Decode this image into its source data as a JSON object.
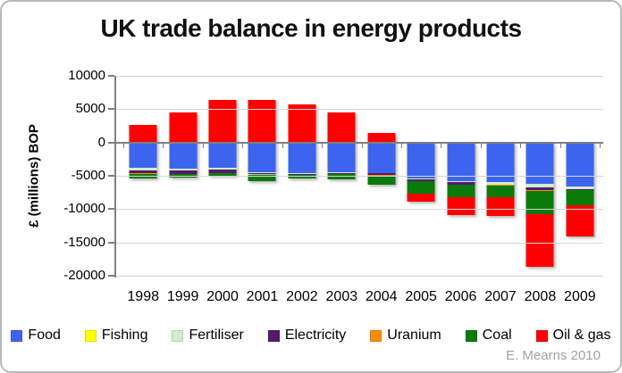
{
  "attribution": "E. Mearns 2010",
  "chart_data": {
    "type": "bar",
    "stacked": true,
    "title": "UK trade balance in energy products",
    "ylabel": "£ (millions) BOP",
    "xlabel": "",
    "categories": [
      "1998",
      "1999",
      "2000",
      "2001",
      "2002",
      "2003",
      "2004",
      "2005",
      "2006",
      "2007",
      "2008",
      "2009"
    ],
    "series": [
      {
        "name": "Food",
        "color": "#3C64EE",
        "values": [
          -3800,
          -3900,
          -3800,
          -4400,
          -4600,
          -4400,
          -4600,
          -5400,
          -5750,
          -5950,
          -6200,
          -6600
        ]
      },
      {
        "name": "Fishing",
        "color": "#FFFF00",
        "values": [
          100,
          100,
          100,
          100,
          100,
          100,
          100,
          100,
          100,
          100,
          100,
          100
        ]
      },
      {
        "name": "Fertiliser",
        "color": "#CDEFCD",
        "values": [
          -450,
          -300,
          -300,
          -250,
          -150,
          -150,
          -50,
          -100,
          -200,
          -350,
          -600,
          -400
        ]
      },
      {
        "name": "Electricity",
        "color": "#551A6B",
        "values": [
          -400,
          -500,
          -450,
          -150,
          -150,
          -200,
          -270,
          -350,
          -350,
          -100,
          -400,
          -100
        ]
      },
      {
        "name": "Uranium",
        "color": "#FF8C00",
        "values": [
          -20,
          -20,
          -20,
          -20,
          -20,
          -20,
          -20,
          -20,
          -20,
          -20,
          -20,
          -20
        ]
      },
      {
        "name": "Coal",
        "color": "#0A7A0A",
        "values": [
          -700,
          -550,
          -450,
          -1050,
          -550,
          -700,
          -1450,
          -1800,
          -1850,
          -1800,
          -3600,
          -2350
        ]
      },
      {
        "name": "Oil & gas",
        "color": "#FE0000",
        "values": [
          2600,
          4350,
          6300,
          6350,
          5600,
          4400,
          1300,
          -1150,
          -2750,
          -2750,
          -7800,
          -4600
        ]
      }
    ],
    "ylim": [
      -20000,
      10000
    ],
    "yticks": [
      10000,
      5000,
      0,
      -5000,
      -10000,
      -15000,
      -20000
    ],
    "grid": true,
    "legend_position": "bottom"
  }
}
